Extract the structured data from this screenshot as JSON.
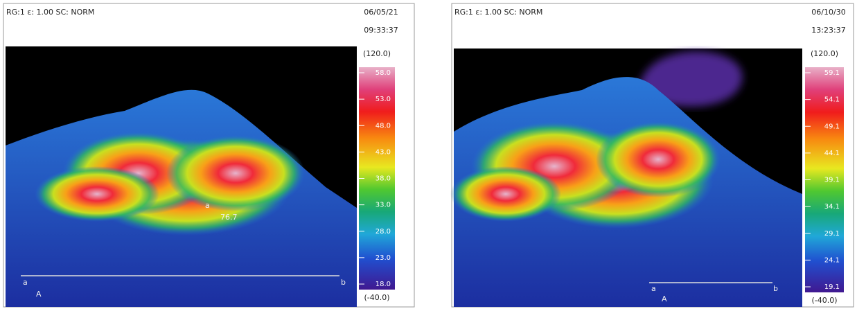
{
  "panels": [
    {
      "header": "RG:1 ε: 1.00 SC: NORM",
      "date": "06/05/21",
      "time": "09:33:37",
      "scale_max": "(120.0)",
      "scale_min": "(-40.0)",
      "scale_labels": [
        "58.0",
        "53.0",
        "48.0",
        "43.0",
        "38.0",
        "33.0",
        "28.0",
        "23.0",
        "18.0"
      ],
      "annotations": [
        "a",
        "b",
        "A",
        "a",
        "76.7"
      ]
    },
    {
      "header": "RG:1 ε: 1.00 SC: NORM",
      "date": "06/10/30",
      "time": "13:23:37",
      "scale_max": "(120.0)",
      "scale_min": "(-40.0)",
      "scale_labels": [
        "59.1",
        "54.1",
        "49.1",
        "44.1",
        "39.1",
        "34.1",
        "29.1",
        "24.1",
        "19.1"
      ],
      "annotations": [
        "a",
        "b",
        "A"
      ]
    }
  ]
}
